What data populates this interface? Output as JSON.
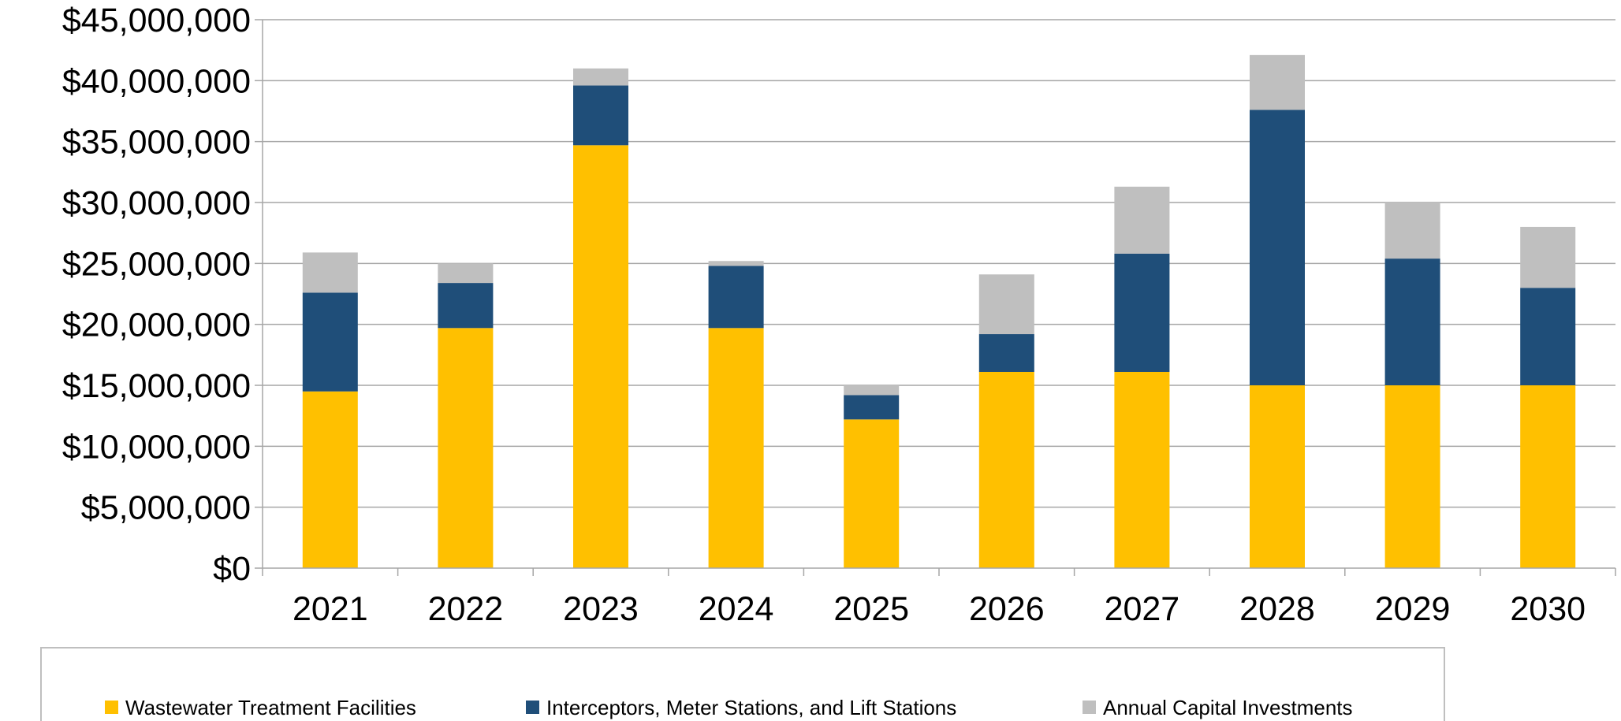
{
  "chart_data": {
    "type": "bar",
    "stacked": true,
    "title": "",
    "xlabel": "",
    "ylabel": "",
    "ylim": [
      0,
      45000000
    ],
    "y_ticks": [
      0,
      5000000,
      10000000,
      15000000,
      20000000,
      25000000,
      30000000,
      35000000,
      40000000,
      45000000
    ],
    "y_tick_labels": [
      "$0",
      "$5,000,000",
      "$10,000,000",
      "$15,000,000",
      "$20,000,000",
      "$25,000,000",
      "$30,000,000",
      "$35,000,000",
      "$40,000,000",
      "$45,000,000"
    ],
    "grid": true,
    "legend_position": "bottom",
    "categories": [
      "2021",
      "2022",
      "2023",
      "2024",
      "2025",
      "2026",
      "2027",
      "2028",
      "2029",
      "2030"
    ],
    "series": [
      {
        "name": "Wastewater Treatment Facilities",
        "color": "#FFC000",
        "values": [
          14500000,
          19700000,
          34700000,
          19700000,
          12200000,
          16100000,
          16100000,
          15000000,
          15000000,
          15000000
        ]
      },
      {
        "name": "Interceptors, Meter Stations, and Lift Stations",
        "color": "#1F4E79",
        "values": [
          8100000,
          3700000,
          4900000,
          5100000,
          2000000,
          3100000,
          9700000,
          22600000,
          10400000,
          8000000
        ]
      },
      {
        "name": "Annual Capital Investments",
        "color": "#BFBFBF",
        "values": [
          3300000,
          1600000,
          1400000,
          400000,
          800000,
          4900000,
          5500000,
          4500000,
          4600000,
          5000000
        ]
      }
    ]
  }
}
